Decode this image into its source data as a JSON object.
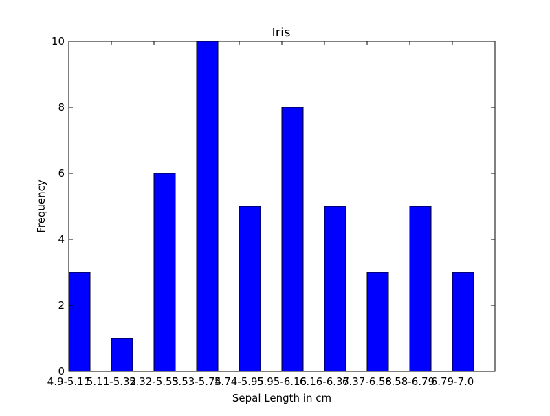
{
  "chart_data": {
    "type": "bar",
    "title": "Iris",
    "xlabel": "Sepal Length in cm",
    "ylabel": "Frequency",
    "categories": [
      "4.9-5.11",
      "5.11-5.32",
      "5.32-5.53",
      "5.53-5.74",
      "5.74-5.95",
      "5.95-6.16",
      "6.16-6.37",
      "6.37-6.58",
      "6.58-6.79",
      "6.79-7.0"
    ],
    "values": [
      3,
      1,
      6,
      10,
      5,
      8,
      5,
      3,
      5,
      3
    ],
    "ylim": [
      0,
      10
    ],
    "yticks": [
      0,
      2,
      4,
      6,
      8,
      10
    ],
    "grid": false,
    "bar_color": "#0000ff",
    "edge_color": "#000000"
  }
}
